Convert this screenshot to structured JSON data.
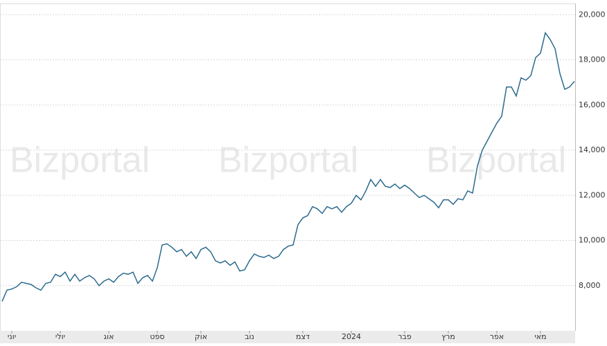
{
  "chart_data": {
    "type": "line",
    "watermark": "Bizportal",
    "categories": [
      null,
      null,
      "יוני",
      null,
      null,
      null,
      null,
      null,
      null,
      null,
      null,
      null,
      "יולי",
      null,
      null,
      null,
      null,
      null,
      null,
      null,
      null,
      null,
      "אוג",
      null,
      null,
      null,
      null,
      null,
      null,
      null,
      null,
      null,
      "ספט",
      null,
      null,
      null,
      null,
      null,
      null,
      null,
      null,
      "אוק",
      null,
      null,
      null,
      null,
      null,
      null,
      null,
      null,
      null,
      "נוב",
      null,
      null,
      null,
      null,
      null,
      null,
      null,
      null,
      null,
      null,
      "דצמ",
      null,
      null,
      null,
      null,
      null,
      null,
      null,
      null,
      null,
      "2024",
      null,
      null,
      null,
      null,
      null,
      null,
      null,
      null,
      null,
      null,
      "פבר",
      null,
      null,
      null,
      null,
      null,
      null,
      null,
      null,
      "מרץ",
      null,
      null,
      null,
      null,
      null,
      null,
      null,
      null,
      null,
      "אפר",
      null,
      null,
      null,
      null,
      null,
      null,
      null,
      null,
      "מאי",
      null,
      null,
      null,
      null,
      null,
      null,
      null
    ],
    "values": [
      7300,
      7800,
      7850,
      7950,
      8150,
      8100,
      8050,
      7900,
      7800,
      8100,
      8150,
      8500,
      8400,
      8600,
      8200,
      8500,
      8200,
      8350,
      8450,
      8300,
      8000,
      8200,
      8300,
      8150,
      8400,
      8550,
      8500,
      8600,
      8100,
      8350,
      8450,
      8200,
      8800,
      9800,
      9850,
      9700,
      9500,
      9600,
      9300,
      9500,
      9200,
      9600,
      9700,
      9500,
      9100,
      9000,
      9100,
      8900,
      9050,
      8650,
      8700,
      9100,
      9400,
      9300,
      9250,
      9350,
      9200,
      9300,
      9600,
      9750,
      9800,
      10700,
      11000,
      11100,
      11500,
      11400,
      11200,
      11500,
      11400,
      11500,
      11250,
      11500,
      11650,
      12000,
      11800,
      12200,
      12700,
      12400,
      12700,
      12400,
      12350,
      12500,
      12300,
      12450,
      12300,
      12100,
      11900,
      12000,
      11850,
      11700,
      11450,
      11800,
      11800,
      11600,
      11850,
      11800,
      12200,
      12100,
      13300,
      14000,
      14400,
      14800,
      15200,
      15500,
      16800,
      16800,
      16400,
      17200,
      17100,
      17300,
      18100,
      18300,
      19200,
      18900,
      18500,
      17400,
      16700,
      16800,
      17050
    ],
    "color": "#2b6a8d",
    "ylim": [
      6000,
      20500
    ],
    "yticks": [
      {
        "value": 8000,
        "label": "8,000"
      },
      {
        "value": 10000,
        "label": "10,000"
      },
      {
        "value": 12000,
        "label": "12,000"
      },
      {
        "value": 14000,
        "label": "14,000"
      },
      {
        "value": 16000,
        "label": "16,000"
      },
      {
        "value": 18000,
        "label": "18,000"
      },
      {
        "value": 20000,
        "label": "20,000"
      }
    ],
    "grid": true
  }
}
